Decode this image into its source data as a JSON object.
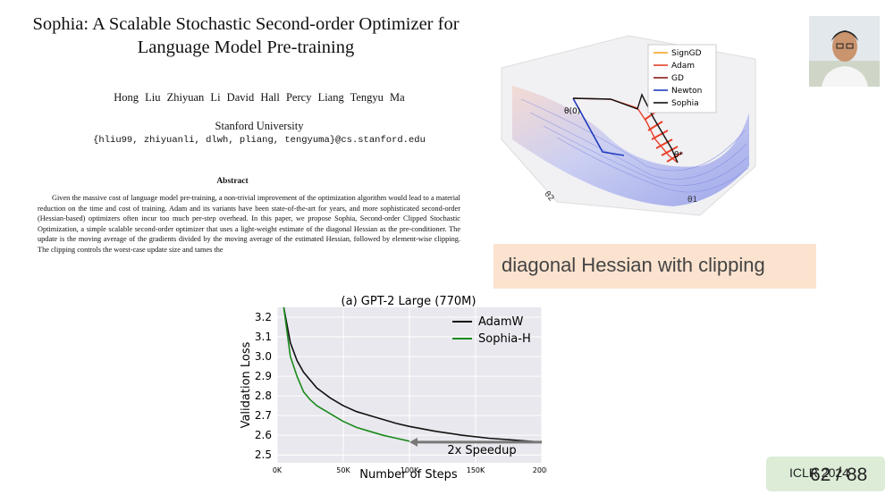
{
  "paper": {
    "title": "Sophia: A Scalable Stochastic Second-order Optimizer for Language Model Pre-training",
    "authors": "Hong Liu   Zhiyuan Li   David Hall   Percy Liang   Tengyu Ma",
    "affiliation": "Stanford University",
    "emails": "{hliu99, zhiyuanli, dlwh, pliang, tengyuma}@cs.stanford.edu",
    "abstract_heading": "Abstract",
    "abstract": "Given the massive cost of language model pre-training, a non-trivial improvement of the optimization algorithm would lead to a material reduction on the time and cost of training. Adam and its variants have been state-of-the-art for years, and more sophisticated second-order (Hessian-based) optimizers often incur too much per-step overhead. In this paper, we propose Sophia, Second-order Clipped Stochastic Optimization, a simple scalable second-order optimizer that uses a light-weight estimate of the diagonal Hessian as the pre-conditioner. The update is the moving average of the gradients divided by the moving average of the estimated Hessian, followed by element-wise clipping. The clipping controls the worst-case update size and tames the"
  },
  "surface_figure": {
    "legend": [
      {
        "name": "SignGD",
        "color": "#f5a623"
      },
      {
        "name": "Adam",
        "color": "#e8412c"
      },
      {
        "name": "GD",
        "color": "#8b1a1a"
      },
      {
        "name": "Newton",
        "color": "#1f3bbf"
      },
      {
        "name": "Sophia",
        "color": "#111111"
      }
    ],
    "labels": {
      "theta0": "θ(0)",
      "theta_star": "θ*",
      "axis_theta2": "θ2",
      "axis_theta1": "θ1"
    }
  },
  "callout": "diagonal Hessian with clipping",
  "chart_data": {
    "type": "line",
    "title": "(a) GPT-2 Large (770M)",
    "xlabel": "Number of Steps",
    "ylabel": "Validation Loss",
    "xlim": [
      0,
      200000
    ],
    "ylim": [
      2.46,
      3.25
    ],
    "xticks": [
      0,
      50000,
      100000,
      150000,
      200000
    ],
    "xtick_labels": [
      "0K",
      "50K",
      "100K",
      "150K",
      "200K"
    ],
    "yticks": [
      2.5,
      2.6,
      2.7,
      2.8,
      2.9,
      3.0,
      3.1,
      3.2
    ],
    "ytick_labels": [
      "2.5",
      "2.6",
      "2.7",
      "2.8",
      "2.9",
      "3.0",
      "3.1",
      "3.2"
    ],
    "grid": true,
    "legend_position": "top-right",
    "series": [
      {
        "name": "AdamW",
        "color": "#111111",
        "x": [
          5000,
          10000,
          15000,
          20000,
          30000,
          40000,
          50000,
          60000,
          70000,
          80000,
          90000,
          100000,
          120000,
          140000,
          160000,
          180000,
          200000
        ],
        "y": [
          3.25,
          3.07,
          2.98,
          2.92,
          2.84,
          2.79,
          2.75,
          2.72,
          2.7,
          2.68,
          2.66,
          2.645,
          2.62,
          2.6,
          2.585,
          2.575,
          2.565
        ]
      },
      {
        "name": "Sophia-H",
        "color": "#1a8a1a",
        "x": [
          5000,
          10000,
          15000,
          20000,
          25000,
          30000,
          40000,
          50000,
          60000,
          70000,
          80000,
          90000,
          100000
        ],
        "y": [
          3.25,
          3.0,
          2.9,
          2.82,
          2.78,
          2.75,
          2.71,
          2.67,
          2.64,
          2.62,
          2.6,
          2.585,
          2.57
        ]
      }
    ],
    "annotation": {
      "text": "2x Speedup",
      "from_x": 200000,
      "to_x": 100000,
      "y": 2.565
    }
  },
  "footer": {
    "conference": "ICLR 2024",
    "page": "62 / 88"
  }
}
